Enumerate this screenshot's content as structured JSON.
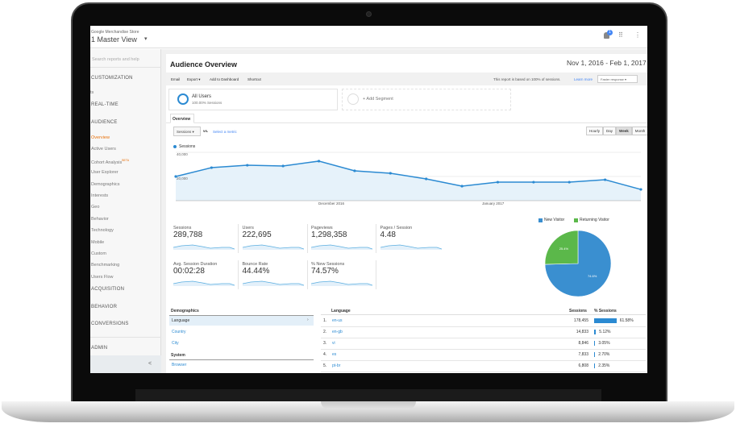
{
  "header": {
    "account": "Google Merchandise Store",
    "view": "1 Master View",
    "notification_count": "1"
  },
  "sidebar": {
    "search_placeholder": "Search reports and help",
    "customization": "CUSTOMIZATION",
    "partial": "ts",
    "realtime": "REAL-TIME",
    "audience": "AUDIENCE",
    "items": [
      {
        "label": "Overview",
        "active": true
      },
      {
        "label": "Active Users"
      },
      {
        "label": "Cohort Analysis",
        "badge": "BETA"
      },
      {
        "label": "User Explorer"
      },
      {
        "label": "Demographics"
      },
      {
        "label": "Interests"
      },
      {
        "label": "Geo"
      },
      {
        "label": "Behavior"
      },
      {
        "label": "Technology"
      },
      {
        "label": "Mobile"
      },
      {
        "label": "Custom"
      },
      {
        "label": "Benchmarking"
      },
      {
        "label": "Users Flow"
      }
    ],
    "sections": [
      "ACQUISITION",
      "BEHAVIOR",
      "CONVERSIONS"
    ],
    "admin": "ADMIN",
    "collapse": "<"
  },
  "page": {
    "title": "Audience Overview",
    "date_range": "Nov 1, 2016 - Feb 1, 2017"
  },
  "toolbar": {
    "email": "Email",
    "export": "Export ▾",
    "dashboard": "Add to Dashboard",
    "shortcut": "Shortcut",
    "note": "This report is based on 100% of sessions.",
    "learn_more": "Learn more",
    "response": "Faster response"
  },
  "segments": {
    "all_users": "All Users",
    "all_users_sub": "100.00% Sessions",
    "add": "+ Add Segment"
  },
  "tab": "Overview",
  "chart_controls": {
    "metric": "Sessions",
    "vs": "vs.",
    "select": "Select a metric",
    "granularity": [
      "Hourly",
      "Day",
      "Week",
      "Month"
    ],
    "selected": "Week"
  },
  "chart_data": {
    "type": "area",
    "series": [
      {
        "name": "Sessions",
        "values": [
          20000,
          27300,
          29300,
          28700,
          32700,
          24700,
          22700,
          18000,
          12000,
          15300,
          15300,
          15300,
          17300,
          9300
        ]
      }
    ],
    "yticks": [
      "40,000",
      "20,000"
    ],
    "ylim": [
      0,
      40000
    ],
    "xlabels": [
      "December 2016",
      "January 2017"
    ],
    "color": "#2b8ad2",
    "grid": true,
    "legend": "top-left"
  },
  "metrics": [
    {
      "label": "Sessions",
      "value": "289,788"
    },
    {
      "label": "Users",
      "value": "222,695"
    },
    {
      "label": "Pageviews",
      "value": "1,298,358"
    },
    {
      "label": "Pages / Session",
      "value": "4.48"
    },
    {
      "label": "Avg. Session Duration",
      "value": "00:02:28"
    },
    {
      "label": "Bounce Rate",
      "value": "44.44%"
    },
    {
      "label": "% New Sessions",
      "value": "74.57%"
    }
  ],
  "pie": {
    "type": "pie",
    "legend": [
      "New Visitor",
      "Returning Visitor"
    ],
    "values": [
      74.6,
      25.4
    ],
    "labels": [
      "74.6%",
      "25.4%"
    ],
    "colors": [
      "#3a8fd0",
      "#5bb84a"
    ]
  },
  "demographics": {
    "title": "Demographics",
    "items": [
      "Language",
      "Country",
      "City"
    ],
    "system_title": "System",
    "system_items": [
      "Browser"
    ]
  },
  "language_table": {
    "header": "Language",
    "sessions_header": "Sessions",
    "pct_header": "% Sessions",
    "rows": [
      {
        "n": "1.",
        "lang": "en-us",
        "sessions": "178,455",
        "pct": "61.58%",
        "v": 61.58
      },
      {
        "n": "2.",
        "lang": "en-gb",
        "sessions": "14,833",
        "pct": "5.12%",
        "v": 5.12
      },
      {
        "n": "3.",
        "lang": "vi",
        "sessions": "8,846",
        "pct": "3.05%",
        "v": 3.05
      },
      {
        "n": "4.",
        "lang": "es",
        "sessions": "7,833",
        "pct": "2.70%",
        "v": 2.7
      },
      {
        "n": "5.",
        "lang": "pt-br",
        "sessions": "6,808",
        "pct": "2.35%",
        "v": 2.35
      }
    ]
  }
}
